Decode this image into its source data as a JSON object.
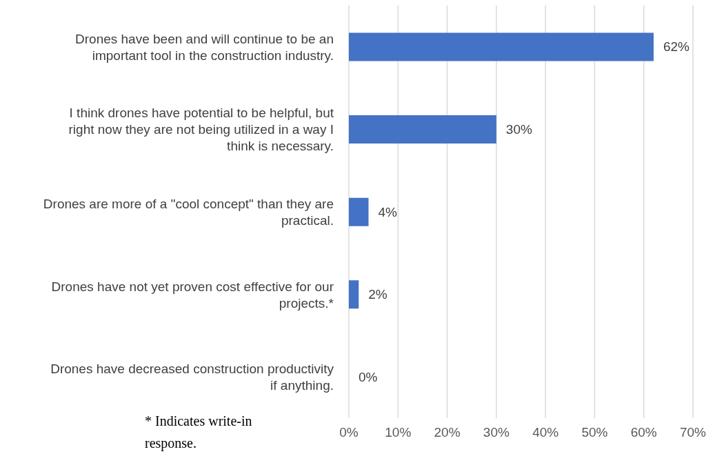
{
  "chart_data": {
    "type": "bar",
    "orientation": "horizontal",
    "categories": [
      "Drones have been and will continue to be an important tool in the construction industry.",
      "I think drones have potential to be helpful, but right now they are not being utilized in a way I think is necessary.",
      "Drones are more of a \"cool concept\" than they are practical.",
      "Drones have not yet proven cost effective for our projects.*",
      "Drones have decreased construction productivity if anything."
    ],
    "values": [
      62,
      30,
      4,
      2,
      0
    ],
    "value_labels": [
      "62%",
      "30%",
      "4%",
      "2%",
      "0%"
    ],
    "color": "#4472c4",
    "xlim": [
      0,
      70
    ],
    "xticks": [
      {
        "value": 0,
        "label": "0%"
      },
      {
        "value": 10,
        "label": "10%"
      },
      {
        "value": 20,
        "label": "20%"
      },
      {
        "value": 30,
        "label": "30%"
      },
      {
        "value": 40,
        "label": "40%"
      },
      {
        "value": 50,
        "label": "50%"
      },
      {
        "value": 60,
        "label": "60%"
      },
      {
        "value": 70,
        "label": "70%"
      }
    ],
    "grid": "x",
    "annotations": [
      "* Indicates write-in response."
    ]
  }
}
